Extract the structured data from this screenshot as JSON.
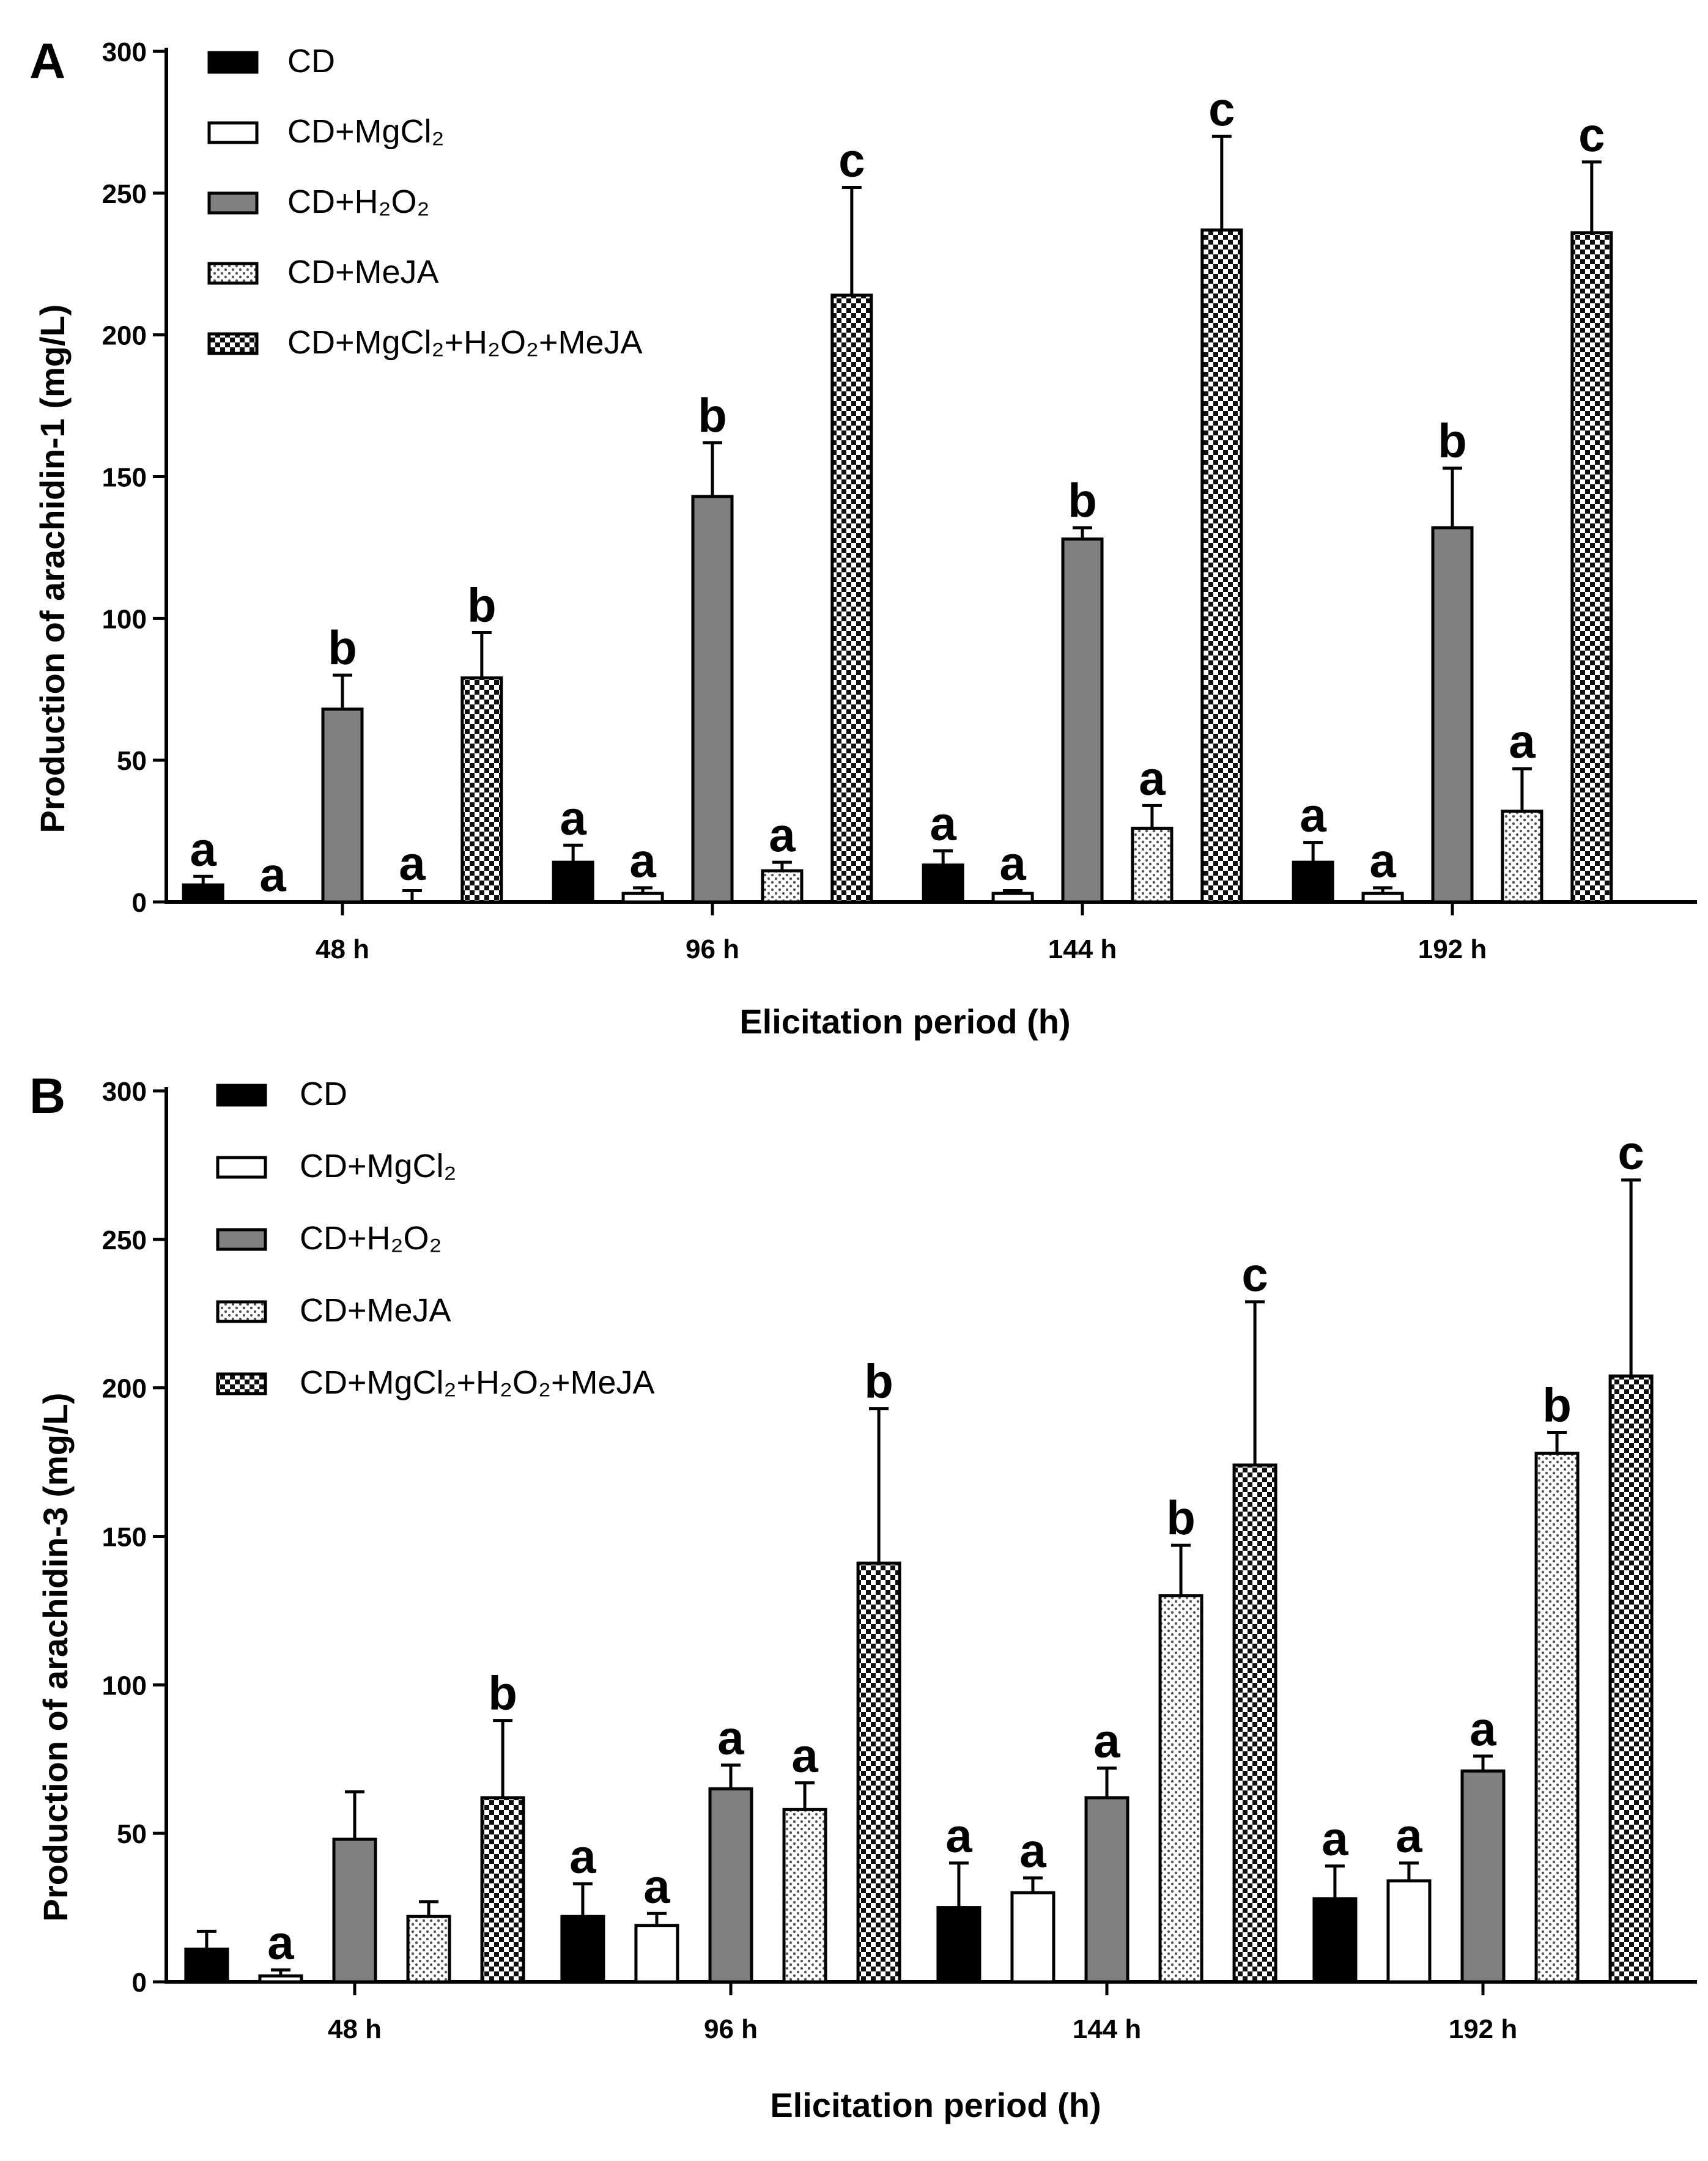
{
  "chart_data": [
    {
      "type": "bar",
      "panel_label": "A",
      "xlabel": "Elicitation period (h)",
      "ylabel": "Production of arachidin-1 (mg/L)",
      "ylim": [
        0,
        300
      ],
      "yticks": [
        0,
        50,
        100,
        150,
        200,
        250,
        300
      ],
      "categories": [
        "48 h",
        "96 h",
        "144 h",
        "192 h"
      ],
      "legend_position": "top-left",
      "series": [
        {
          "name": "CD",
          "sub": "",
          "pattern": "black",
          "values": [
            6,
            14,
            13,
            14
          ],
          "errors": [
            3,
            6,
            5,
            7
          ],
          "letters": [
            "a",
            "a",
            "a",
            "a"
          ]
        },
        {
          "name": "CD+MgCl₂",
          "sub": "",
          "pattern": "white",
          "values": [
            0,
            3,
            3,
            3
          ],
          "errors": [
            0,
            2,
            1,
            2
          ],
          "letters": [
            "a",
            "a",
            "a",
            "a"
          ]
        },
        {
          "name": "CD+H₂O₂",
          "sub": "",
          "pattern": "gray",
          "values": [
            68,
            143,
            128,
            132
          ],
          "errors": [
            12,
            19,
            4,
            21
          ],
          "letters": [
            "b",
            "b",
            "b",
            "b"
          ]
        },
        {
          "name": "CD+MeJA",
          "sub": "",
          "pattern": "dots",
          "values": [
            0,
            11,
            26,
            32
          ],
          "errors": [
            4,
            3,
            8,
            15
          ],
          "letters": [
            "a",
            "a",
            "a",
            "a"
          ]
        },
        {
          "name": "CD+MgCl₂+H₂O₂+MeJA",
          "sub": "",
          "pattern": "checker",
          "values": [
            79,
            214,
            237,
            236
          ],
          "errors": [
            16,
            38,
            33,
            25
          ],
          "letters": [
            "b",
            "c",
            "c",
            "c"
          ]
        }
      ]
    },
    {
      "type": "bar",
      "panel_label": "B",
      "xlabel": "Elicitation period (h)",
      "ylabel": "Production of arachidin-3 (mg/L)",
      "ylim": [
        0,
        300
      ],
      "yticks": [
        0,
        50,
        100,
        150,
        200,
        250,
        300
      ],
      "categories": [
        "48 h",
        "96 h",
        "144 h",
        "192 h"
      ],
      "legend_position": "top-left",
      "series": [
        {
          "name": "CD",
          "pattern": "black",
          "values": [
            11,
            22,
            25,
            28
          ],
          "errors": [
            6,
            11,
            15,
            11
          ],
          "letters": [
            "",
            "a",
            "a",
            "a"
          ]
        },
        {
          "name": "CD+MgCl₂",
          "pattern": "white",
          "values": [
            2,
            19,
            30,
            34
          ],
          "errors": [
            2,
            4,
            5,
            6
          ],
          "letters": [
            "a",
            "a",
            "a",
            "a"
          ]
        },
        {
          "name": "CD+H₂O₂",
          "pattern": "gray",
          "values": [
            48,
            65,
            62,
            71
          ],
          "errors": [
            16,
            8,
            10,
            5
          ],
          "letters": [
            "",
            "a",
            "a",
            "a"
          ]
        },
        {
          "name": "CD+MeJA",
          "pattern": "dots",
          "values": [
            22,
            58,
            130,
            178
          ],
          "errors": [
            5,
            9,
            17,
            7
          ],
          "letters": [
            "",
            "a",
            "b",
            "b"
          ]
        },
        {
          "name": "CD+MgCl₂+H₂O₂+MeJA",
          "pattern": "checker",
          "values": [
            62,
            141,
            174,
            204
          ],
          "errors": [
            26,
            52,
            55,
            66
          ],
          "letters": [
            "b",
            "b",
            "c",
            "c"
          ]
        }
      ]
    }
  ]
}
